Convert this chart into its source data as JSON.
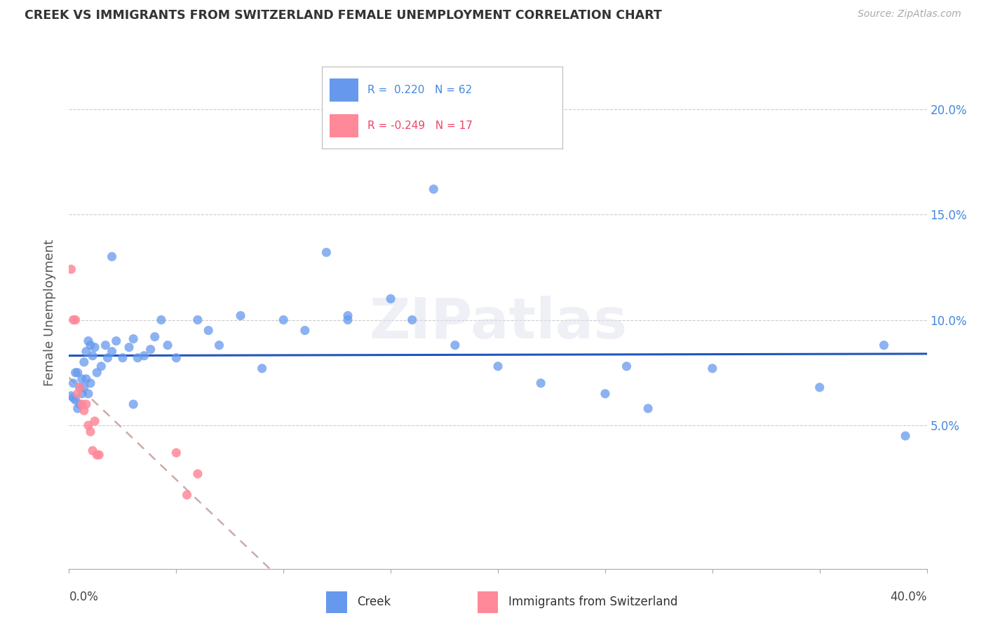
{
  "title": "CREEK VS IMMIGRANTS FROM SWITZERLAND FEMALE UNEMPLOYMENT CORRELATION CHART",
  "source": "Source: ZipAtlas.com",
  "ylabel": "Female Unemployment",
  "creek_color": "#6699ee",
  "swiss_color": "#ff8899",
  "creek_line_color": "#2255bb",
  "swiss_line_color": "#ccaaaa",
  "creek_label": "Creek",
  "swiss_label": "Immigrants from Switzerland",
  "creek_R_text": "R =  0.220   N = 62",
  "swiss_R_text": "R = -0.249   N = 17",
  "creek_points_x": [
    0.001,
    0.002,
    0.002,
    0.003,
    0.003,
    0.004,
    0.004,
    0.005,
    0.005,
    0.006,
    0.006,
    0.007,
    0.007,
    0.008,
    0.008,
    0.009,
    0.009,
    0.01,
    0.01,
    0.011,
    0.012,
    0.013,
    0.015,
    0.017,
    0.018,
    0.02,
    0.022,
    0.025,
    0.028,
    0.03,
    0.032,
    0.035,
    0.038,
    0.04,
    0.043,
    0.046,
    0.05,
    0.06,
    0.065,
    0.07,
    0.08,
    0.09,
    0.1,
    0.11,
    0.12,
    0.13,
    0.15,
    0.16,
    0.18,
    0.2,
    0.22,
    0.25,
    0.27,
    0.3,
    0.35,
    0.38,
    0.26,
    0.13,
    0.02,
    0.03,
    0.17,
    0.39
  ],
  "creek_points_y": [
    0.064,
    0.063,
    0.07,
    0.062,
    0.075,
    0.058,
    0.075,
    0.068,
    0.06,
    0.072,
    0.065,
    0.08,
    0.068,
    0.085,
    0.072,
    0.09,
    0.065,
    0.088,
    0.07,
    0.083,
    0.087,
    0.075,
    0.078,
    0.088,
    0.082,
    0.085,
    0.09,
    0.082,
    0.087,
    0.091,
    0.082,
    0.083,
    0.086,
    0.092,
    0.1,
    0.088,
    0.082,
    0.1,
    0.095,
    0.088,
    0.102,
    0.077,
    0.1,
    0.095,
    0.132,
    0.102,
    0.11,
    0.1,
    0.088,
    0.078,
    0.07,
    0.065,
    0.058,
    0.077,
    0.068,
    0.088,
    0.078,
    0.1,
    0.13,
    0.06,
    0.162,
    0.045
  ],
  "swiss_points_x": [
    0.001,
    0.002,
    0.003,
    0.004,
    0.005,
    0.006,
    0.007,
    0.008,
    0.009,
    0.01,
    0.011,
    0.012,
    0.013,
    0.014,
    0.05,
    0.055,
    0.06
  ],
  "swiss_points_y": [
    0.124,
    0.1,
    0.1,
    0.065,
    0.068,
    0.06,
    0.057,
    0.06,
    0.05,
    0.047,
    0.038,
    0.052,
    0.036,
    0.036,
    0.037,
    0.017,
    0.027
  ],
  "xlim": [
    0.0,
    0.4
  ],
  "ylim": [
    -0.018,
    0.225
  ],
  "ytick_positions": [
    0.05,
    0.1,
    0.15,
    0.2
  ],
  "ytick_labels": [
    "5.0%",
    "10.0%",
    "15.0%",
    "20.0%"
  ]
}
